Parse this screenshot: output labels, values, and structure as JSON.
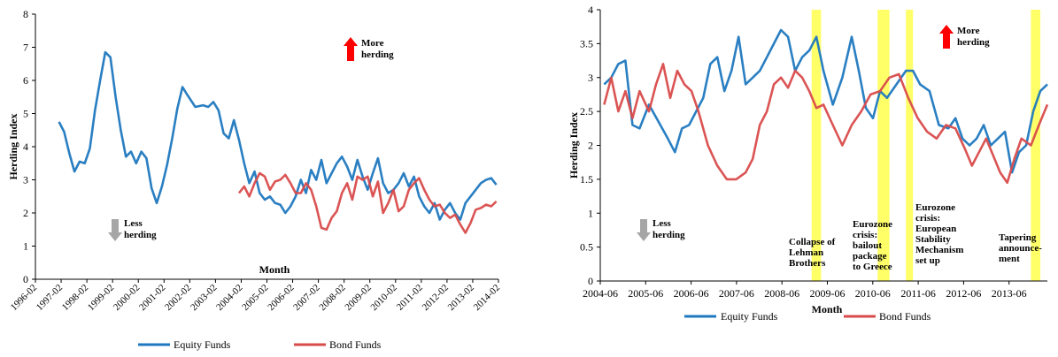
{
  "colors": {
    "equity": "#1F78BF",
    "bond": "#D94B4B",
    "highlight": "#FFFF4D",
    "axis": "#000000",
    "up_arrow": "#FF0000",
    "down_arrow": "#A6A6A6"
  },
  "chart_data": [
    {
      "type": "line",
      "xlabel": "Month",
      "ylabel": "Herding Index",
      "ylim": [
        0,
        8
      ],
      "yticks": [
        "0",
        "1",
        "2",
        "3",
        "4",
        "5",
        "6",
        "7",
        "8"
      ],
      "xticks": [
        "1996-02",
        "1997-02",
        "1998-02",
        "1999-02",
        "2000-02",
        "2001-02",
        "2002-02",
        "2003-02",
        "2004-02",
        "2005-02",
        "2006-02",
        "2007-02",
        "2008-02",
        "2009-02",
        "2010-02",
        "2011-02",
        "2012-02",
        "2013-02",
        "2014-02"
      ],
      "grid": false,
      "legend_position": "bottom",
      "annotations": [
        {
          "text_lines": [
            "More",
            "herding"
          ],
          "marker": "up-arrow"
        },
        {
          "text_lines": [
            "Less",
            "herding"
          ],
          "marker": "down-arrow"
        }
      ],
      "series": [
        {
          "name": "Equity Funds",
          "color": "#1F78BF",
          "x": [
            1997.0,
            1997.2,
            1997.4,
            1997.6,
            1997.8,
            1998.0,
            1998.2,
            1998.4,
            1998.6,
            1998.8,
            1999.0,
            1999.2,
            1999.4,
            1999.6,
            1999.8,
            2000.0,
            2000.2,
            2000.4,
            2000.6,
            2000.8,
            2001.0,
            2001.2,
            2001.4,
            2001.6,
            2001.8,
            2002.0,
            2002.3,
            2002.6,
            2002.8,
            2003.0,
            2003.2,
            2003.4,
            2003.6,
            2003.8,
            2004.0,
            2004.2,
            2004.4,
            2004.6,
            2004.8,
            2005.0,
            2005.2,
            2005.4,
            2005.6,
            2005.8,
            2006.0,
            2006.2,
            2006.4,
            2006.6,
            2006.8,
            2007.0,
            2007.2,
            2007.4,
            2007.6,
            2007.8,
            2008.0,
            2008.2,
            2008.4,
            2008.6,
            2008.8,
            2009.0,
            2009.2,
            2009.4,
            2009.6,
            2009.8,
            2010.0,
            2010.2,
            2010.4,
            2010.6,
            2010.8,
            2011.0,
            2011.2,
            2011.4,
            2011.6,
            2011.8,
            2012.0,
            2012.2,
            2012.4,
            2012.6,
            2012.8,
            2013.0,
            2013.2,
            2013.4,
            2013.6,
            2013.8,
            2014.0
          ],
          "y": [
            4.75,
            4.45,
            3.8,
            3.25,
            3.55,
            3.5,
            3.95,
            5.1,
            6.0,
            6.85,
            6.7,
            5.5,
            4.5,
            3.7,
            3.85,
            3.5,
            3.85,
            3.65,
            2.75,
            2.3,
            2.8,
            3.45,
            4.25,
            5.15,
            5.8,
            5.55,
            5.2,
            5.25,
            5.2,
            5.35,
            5.1,
            4.4,
            4.25,
            4.8,
            4.2,
            3.5,
            2.9,
            3.25,
            2.6,
            2.4,
            2.5,
            2.3,
            2.25,
            2.0,
            2.2,
            2.5,
            3.0,
            2.6,
            3.3,
            3.0,
            3.6,
            2.9,
            3.2,
            3.5,
            3.7,
            3.4,
            3.0,
            3.6,
            3.1,
            2.7,
            3.2,
            3.65,
            2.9,
            2.6,
            2.7,
            2.9,
            3.2,
            2.8,
            3.1,
            2.5,
            2.2,
            2.0,
            2.3,
            1.8,
            2.1,
            2.3,
            2.0,
            1.8,
            2.3,
            2.5,
            2.7,
            2.9,
            3.0,
            3.05,
            2.85
          ]
        },
        {
          "name": "Bond Funds",
          "color": "#D94B4B",
          "x": [
            2004.0,
            2004.2,
            2004.4,
            2004.6,
            2004.8,
            2005.0,
            2005.2,
            2005.4,
            2005.6,
            2005.8,
            2006.0,
            2006.2,
            2006.4,
            2006.6,
            2006.8,
            2007.0,
            2007.2,
            2007.4,
            2007.6,
            2007.8,
            2008.0,
            2008.2,
            2008.4,
            2008.6,
            2008.8,
            2009.0,
            2009.2,
            2009.4,
            2009.6,
            2009.8,
            2010.0,
            2010.2,
            2010.4,
            2010.6,
            2010.8,
            2011.0,
            2011.2,
            2011.4,
            2011.6,
            2011.8,
            2012.0,
            2012.2,
            2012.4,
            2012.6,
            2012.8,
            2013.0,
            2013.2,
            2013.4,
            2013.6,
            2013.8,
            2014.0
          ],
          "y": [
            2.6,
            2.8,
            2.5,
            2.9,
            3.2,
            3.1,
            2.7,
            2.95,
            3.0,
            3.15,
            2.9,
            2.6,
            2.6,
            2.9,
            2.7,
            2.2,
            1.55,
            1.5,
            1.85,
            2.05,
            2.6,
            2.9,
            2.4,
            3.1,
            3.0,
            3.1,
            2.5,
            2.95,
            2.0,
            2.3,
            2.7,
            2.05,
            2.2,
            2.7,
            2.9,
            3.05,
            2.7,
            2.4,
            2.2,
            2.25,
            2.0,
            1.85,
            1.95,
            1.65,
            1.4,
            1.7,
            2.1,
            2.15,
            2.25,
            2.2,
            2.35
          ]
        }
      ]
    },
    {
      "type": "line",
      "xlabel": "Month",
      "ylabel": "Herding Index",
      "ylim": [
        0,
        4
      ],
      "yticks": [
        "0",
        "0.5",
        "1",
        "1.5",
        "2",
        "2.5",
        "3",
        "3.5",
        "4"
      ],
      "xticks": [
        "2004-06",
        "2005-06",
        "2006-06",
        "2007-06",
        "2008-06",
        "2009-06",
        "2010-06",
        "2011-06",
        "2012-06",
        "2013-06"
      ],
      "grid": false,
      "legend_position": "bottom",
      "annotations": [
        {
          "text_lines": [
            "More",
            "herding"
          ],
          "marker": "up-arrow"
        },
        {
          "text_lines": [
            "Less",
            "herding"
          ],
          "marker": "down-arrow"
        },
        {
          "text_lines": [
            "Collapse of",
            "Lehman",
            "Brothers"
          ]
        },
        {
          "text_lines": [
            "Eurozone",
            "crisis:",
            "bailout",
            "package",
            "to Greece"
          ]
        },
        {
          "text_lines": [
            "Eurozone",
            "crisis:",
            "European",
            "Stability",
            "Mechanism",
            "set up"
          ]
        },
        {
          "text_lines": [
            "Tapering",
            "announce-",
            "ment"
          ]
        }
      ],
      "highlight_periods": [
        [
          2008.9,
          2009.1
        ],
        [
          2010.3,
          2010.55
        ],
        [
          2010.9,
          2011.05
        ],
        [
          2013.55,
          2013.75
        ]
      ],
      "series": [
        {
          "name": "Equity Funds",
          "color": "#1F78BF",
          "x": [
            2004.5,
            2004.65,
            2004.8,
            2004.95,
            2005.1,
            2005.25,
            2005.45,
            2005.65,
            2005.85,
            2006.0,
            2006.15,
            2006.3,
            2006.45,
            2006.6,
            2006.75,
            2006.9,
            2007.05,
            2007.2,
            2007.35,
            2007.5,
            2007.65,
            2007.8,
            2007.95,
            2008.1,
            2008.25,
            2008.4,
            2008.55,
            2008.7,
            2008.85,
            2009.0,
            2009.15,
            2009.35,
            2009.55,
            2009.75,
            2009.9,
            2010.05,
            2010.2,
            2010.35,
            2010.5,
            2010.7,
            2010.9,
            2011.05,
            2011.2,
            2011.4,
            2011.6,
            2011.8,
            2011.95,
            2012.1,
            2012.25,
            2012.4,
            2012.55,
            2012.7,
            2012.85,
            2013.0,
            2013.15,
            2013.3,
            2013.45,
            2013.6,
            2013.75,
            2013.9
          ],
          "y": [
            2.9,
            3.0,
            3.2,
            3.25,
            2.3,
            2.25,
            2.6,
            2.35,
            2.1,
            1.9,
            2.25,
            2.3,
            2.5,
            2.7,
            3.2,
            3.3,
            2.8,
            3.1,
            3.6,
            2.9,
            3.0,
            3.1,
            3.3,
            3.5,
            3.7,
            3.6,
            3.1,
            3.3,
            3.4,
            3.6,
            3.1,
            2.6,
            3.0,
            3.6,
            3.1,
            2.55,
            2.4,
            2.8,
            2.7,
            2.9,
            3.1,
            3.1,
            2.9,
            2.8,
            2.3,
            2.25,
            2.4,
            2.1,
            2.0,
            2.1,
            2.3,
            2.0,
            2.1,
            2.2,
            1.6,
            1.9,
            2.0,
            2.5,
            2.8,
            2.9
          ]
        },
        {
          "name": "Bond Funds",
          "color": "#D94B4B",
          "x": [
            2004.5,
            2004.65,
            2004.8,
            2004.95,
            2005.1,
            2005.25,
            2005.45,
            2005.6,
            2005.75,
            2005.9,
            2006.05,
            2006.2,
            2006.35,
            2006.5,
            2006.7,
            2006.9,
            2007.1,
            2007.3,
            2007.5,
            2007.65,
            2007.8,
            2007.95,
            2008.1,
            2008.25,
            2008.4,
            2008.55,
            2008.7,
            2008.85,
            2009.0,
            2009.15,
            2009.35,
            2009.55,
            2009.75,
            2009.95,
            2010.15,
            2010.35,
            2010.55,
            2010.75,
            2010.95,
            2011.15,
            2011.35,
            2011.55,
            2011.75,
            2011.95,
            2012.15,
            2012.3,
            2012.45,
            2012.6,
            2012.75,
            2012.9,
            2013.05,
            2013.2,
            2013.35,
            2013.55,
            2013.75,
            2013.9
          ],
          "y": [
            2.6,
            3.0,
            2.5,
            2.8,
            2.4,
            2.8,
            2.5,
            2.9,
            3.2,
            2.7,
            3.1,
            2.9,
            2.8,
            2.5,
            2.0,
            1.7,
            1.5,
            1.5,
            1.6,
            1.8,
            2.3,
            2.5,
            2.9,
            3.0,
            2.85,
            3.1,
            3.0,
            2.8,
            2.55,
            2.6,
            2.3,
            2.0,
            2.3,
            2.5,
            2.75,
            2.8,
            3.0,
            3.05,
            2.7,
            2.4,
            2.2,
            2.1,
            2.3,
            2.25,
            1.95,
            1.7,
            1.9,
            2.1,
            1.85,
            1.6,
            1.45,
            1.8,
            2.1,
            2.0,
            2.35,
            2.6
          ]
        }
      ]
    }
  ]
}
